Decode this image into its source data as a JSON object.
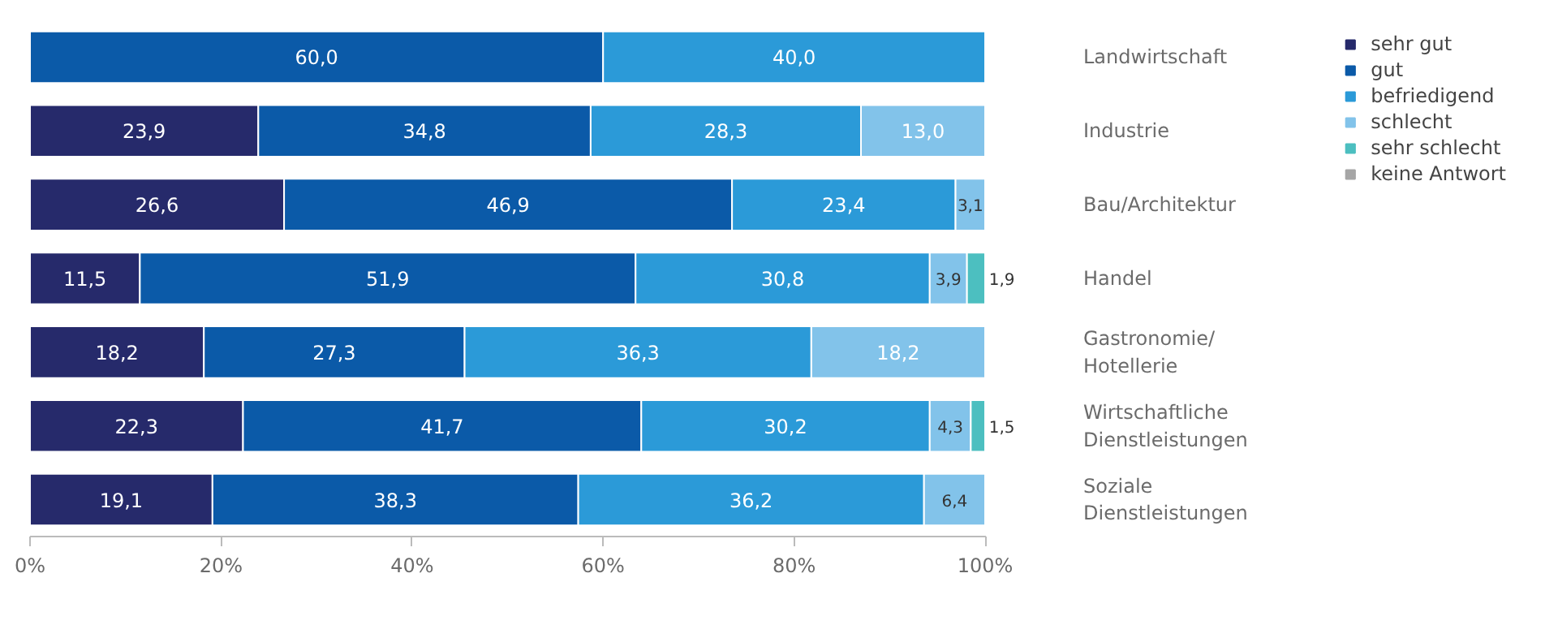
{
  "chart_data": {
    "type": "bar",
    "orientation": "horizontal",
    "stacked": true,
    "categories": [
      "Landwirtschaft",
      "Industrie",
      "Bau/Architektur",
      "Handel",
      "Gastronomie/\nHotellerie",
      "Wirtschaftliche\nDienstleistungen",
      "Soziale\nDienstleistungen"
    ],
    "series": [
      {
        "name": "sehr gut",
        "color": "#262a6b",
        "values": [
          null,
          23.9,
          26.6,
          11.5,
          18.2,
          22.3,
          19.1
        ],
        "value_labels": [
          null,
          "23,9",
          "26,6",
          "11,5",
          "18,2",
          "22,3",
          "19,1"
        ]
      },
      {
        "name": "gut",
        "color": "#0b5aa8",
        "values": [
          60.0,
          34.8,
          46.9,
          51.9,
          27.3,
          41.7,
          38.3
        ],
        "value_labels": [
          "60,0",
          "34,8",
          "46,9",
          "51,9",
          "27,3",
          "41,7",
          "38,3"
        ]
      },
      {
        "name": "befriedigend",
        "color": "#2b9ad8",
        "values": [
          40.0,
          28.3,
          23.4,
          30.8,
          36.3,
          30.2,
          36.2
        ],
        "value_labels": [
          "40,0",
          "28,3",
          "23,4",
          "30,8",
          "36,3",
          "30,2",
          "36,2"
        ]
      },
      {
        "name": "schlecht",
        "color": "#82c3ea",
        "values": [
          null,
          13.0,
          3.1,
          3.9,
          18.2,
          4.3,
          6.4
        ],
        "value_labels": [
          null,
          "13,0",
          "3,1",
          "3,9",
          "18,2",
          "4,3",
          "6,4"
        ]
      },
      {
        "name": "sehr schlecht",
        "color": "#4cbfc0",
        "values": [
          null,
          null,
          null,
          1.9,
          null,
          1.5,
          null
        ],
        "value_labels": [
          null,
          null,
          null,
          "1,9",
          null,
          "1,5",
          null
        ]
      },
      {
        "name": "keine Antwort",
        "color": "#a6a6a6",
        "values": [
          null,
          null,
          null,
          null,
          null,
          null,
          null
        ]
      }
    ],
    "xlim": [
      0,
      100
    ],
    "xticks": [
      {
        "value": 0,
        "label": "0%"
      },
      {
        "value": 20,
        "label": "20%"
      },
      {
        "value": 40,
        "label": "40%"
      },
      {
        "value": 60,
        "label": "60%"
      },
      {
        "value": 80,
        "label": "80%"
      },
      {
        "value": 100,
        "label": "100%"
      }
    ],
    "grid": false,
    "legend": "top right"
  }
}
